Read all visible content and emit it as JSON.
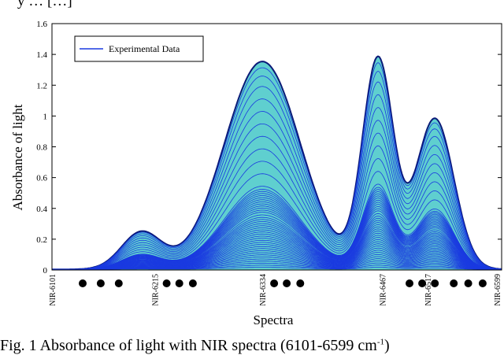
{
  "top_text": "y … […]",
  "caption": {
    "text": "Fig. 1 Absorbance of light with NIR spectra (6101-6599 cm",
    "sup": "-1",
    "end": ")"
  },
  "chart_data": {
    "type": "line",
    "title": "",
    "xlabel": "Spectra",
    "ylabel": "Absorbance of light",
    "xlim": [
      6101,
      6599
    ],
    "ylim": [
      0,
      1.6
    ],
    "yticks": [
      0,
      0.2,
      0.4,
      0.6,
      0.8,
      1,
      1.2,
      1.4,
      1.6
    ],
    "ytick_labels": [
      "0",
      "0.2",
      "0.4",
      "0.6",
      "0.8",
      "1",
      "1.2",
      "1.4",
      "1.6"
    ],
    "xticks": [
      6101,
      6215,
      6334,
      6467,
      6517,
      6599
    ],
    "xtick_labels": [
      "NIR-6101",
      "NIR-6215",
      "NIR-6334",
      "NIR-6467",
      "NIR-6517",
      "NIR-6599"
    ],
    "grid": false,
    "legend": {
      "position": "top-left",
      "entries": [
        "Experimental Data"
      ]
    },
    "fill_color": "#5fcfcf",
    "line_color": "#1a3ae0",
    "envelope_color": "#0a1a78",
    "max_peaks": [
      {
        "center": 6200,
        "height": 0.24,
        "width": 22
      },
      {
        "center": 6334,
        "height": 1.35,
        "width": 42
      },
      {
        "center": 6462,
        "height": 1.36,
        "width": 17
      },
      {
        "center": 6525,
        "height": 0.98,
        "width": 21
      }
    ],
    "series_scales": [
      1.0,
      0.97,
      0.93,
      0.88,
      0.82,
      0.76,
      0.7,
      0.64,
      0.58,
      0.52,
      0.46,
      0.4,
      0.385,
      0.375,
      0.365,
      0.355,
      0.345,
      0.335,
      0.325,
      0.315,
      0.305,
      0.295,
      0.285,
      0.275,
      0.262,
      0.25,
      0.24,
      0.23,
      0.22,
      0.21,
      0.2,
      0.19,
      0.18,
      0.17,
      0.16,
      0.15,
      0.14,
      0.13,
      0.12,
      0.11,
      0.1,
      0.09,
      0.08,
      0.07,
      0.06,
      0.05,
      0.04,
      0.03,
      0.02,
      0.01
    ],
    "marker_dots": [
      6135,
      6155,
      6175,
      6228,
      6242,
      6257,
      6347,
      6361,
      6376,
      6497,
      6511,
      6525,
      6546,
      6562,
      6578
    ]
  }
}
